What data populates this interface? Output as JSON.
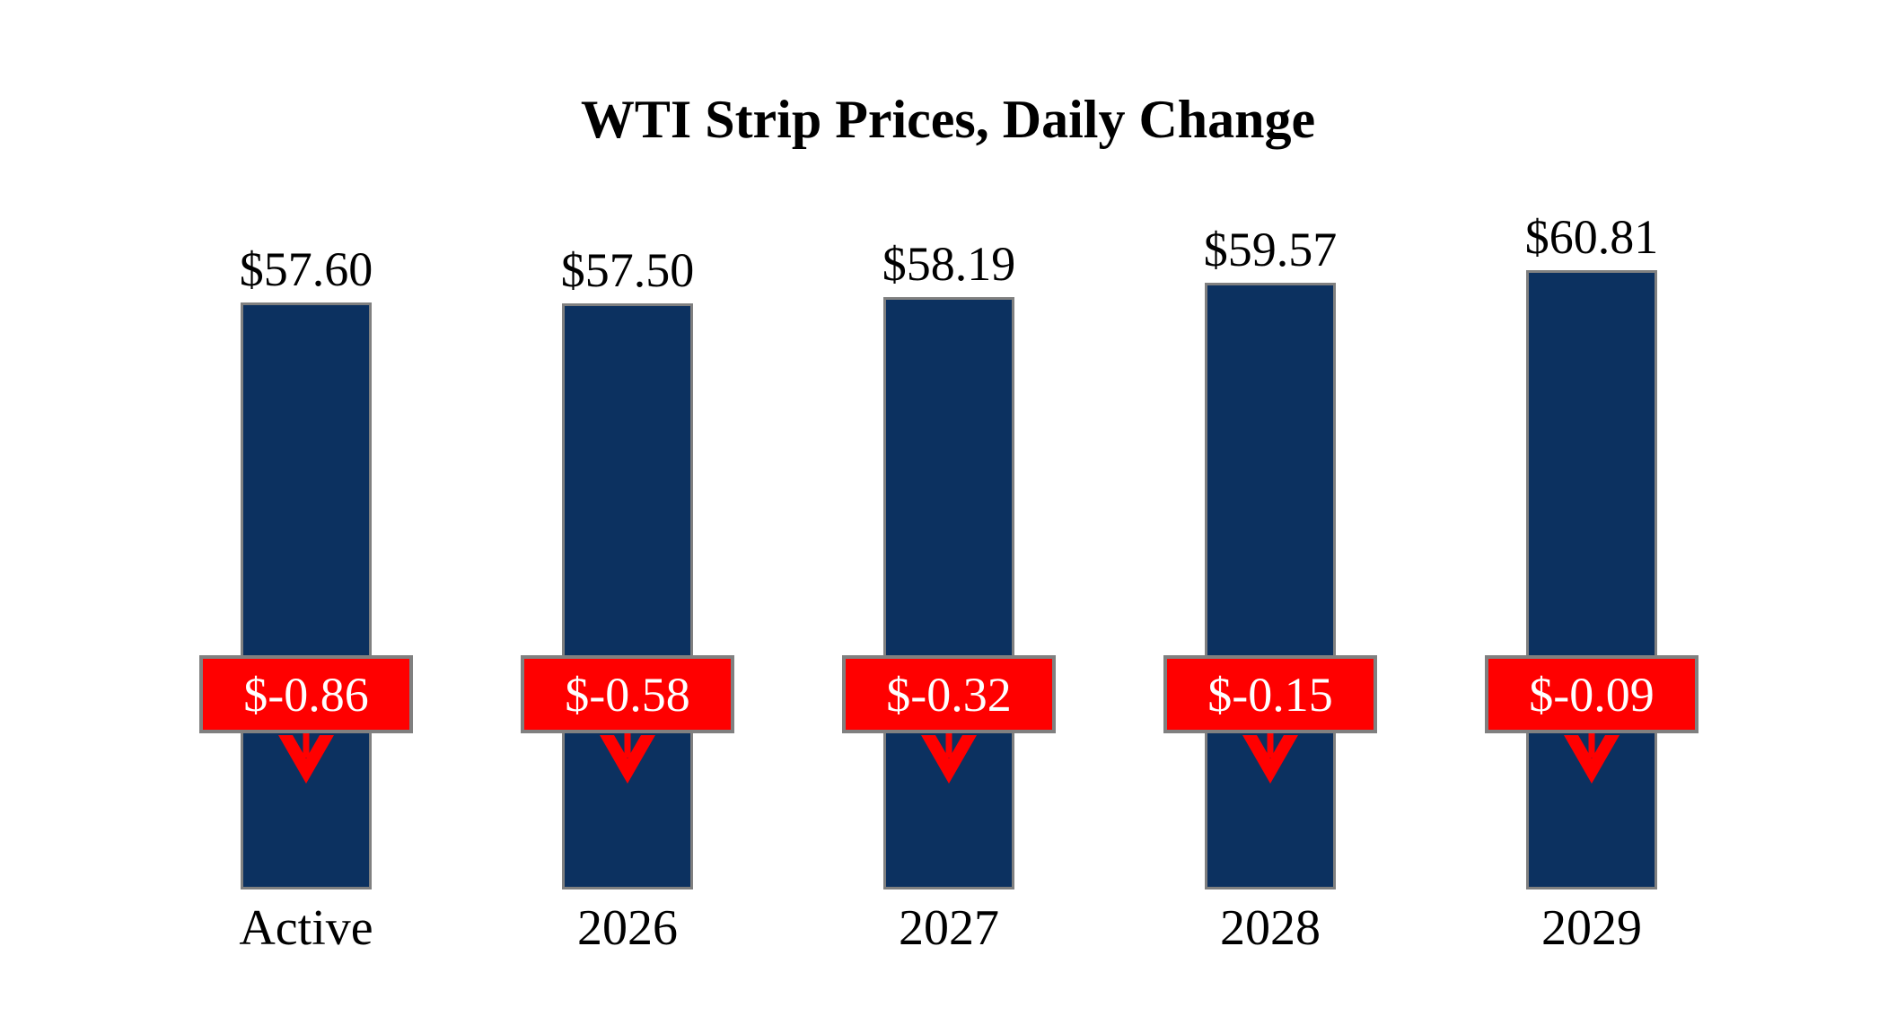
{
  "title": "WTI Strip Prices, Daily Change",
  "colors": {
    "background": "#ffffff",
    "bar_fill": "#0c3160",
    "bar_border": "#808080",
    "change_box_fill": "#ff0000",
    "change_box_border": "#808080",
    "change_text": "#ffffff",
    "arrow": "#ff0000",
    "label_text": "#000000"
  },
  "chart_data": {
    "type": "bar",
    "title": "WTI Strip Prices, Daily Change",
    "categories": [
      "Active",
      "2026",
      "2027",
      "2028",
      "2029"
    ],
    "series": [
      {
        "name": "WTI Strip Price",
        "values": [
          57.6,
          57.5,
          58.19,
          59.57,
          60.81
        ],
        "labels": [
          "$57.60",
          "$57.50",
          "$58.19",
          "$59.57",
          "$60.81"
        ]
      },
      {
        "name": "Daily Change",
        "values": [
          -0.86,
          -0.58,
          -0.32,
          -0.15,
          -0.09
        ],
        "labels": [
          "$-0.86",
          "$-0.58",
          "$-0.32",
          "$-0.15",
          "$-0.09"
        ]
      }
    ],
    "xlabel": "",
    "ylabel": "",
    "ylim": [
      0,
      61
    ],
    "grid": false,
    "legend": "none",
    "annotations": "each bar carries a red badge with the daily change value and a red down arrow",
    "direction_indicator": "down-arrow"
  }
}
